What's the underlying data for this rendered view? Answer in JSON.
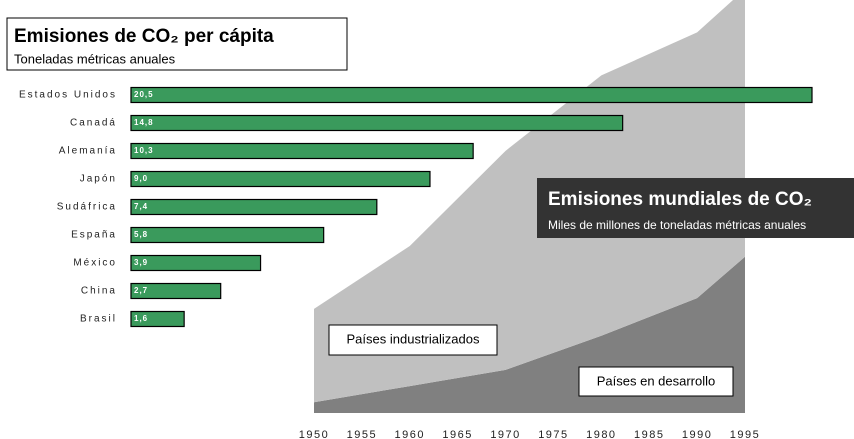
{
  "chart_data": [
    {
      "type": "area",
      "title": "Emisiones mundiales de CO₂",
      "subtitle": "Miles de millones de toneladas métricas anuales",
      "x": [
        1950,
        1960,
        1970,
        1980,
        1990,
        1995
      ],
      "xlim": [
        1950,
        1995
      ],
      "xticks": [
        1950,
        1955,
        1960,
        1965,
        1970,
        1975,
        1980,
        1985,
        1990,
        1995
      ],
      "ylim": [
        0,
        23
      ],
      "stacked": true,
      "series": [
        {
          "name": "Países en desarrollo",
          "color": "#808080",
          "values": [
            0.6,
            1.5,
            2.4,
            4.3,
            6.4,
            8.7
          ]
        },
        {
          "name": "Países industrializados",
          "color": "#c0c0c0",
          "values": [
            5.2,
            7.8,
            12.2,
            14.5,
            14.8,
            14.9
          ]
        }
      ]
    },
    {
      "type": "hbar",
      "title": "Emisiones de CO₂ per cápita",
      "subtitle": "Toneladas métricas anuales",
      "categories": [
        "Estados Unidos",
        "Canadá",
        "Alemanía",
        "Japón",
        "Sudáfrica",
        "España",
        "México",
        "China",
        "Brasil"
      ],
      "values": [
        20.5,
        14.8,
        10.3,
        9.0,
        7.4,
        5.8,
        3.9,
        2.7,
        1.6
      ],
      "value_labels": [
        "20,5",
        "14,8",
        "10,3",
        "9,0",
        "7,4",
        "5,8",
        "3,9",
        "2,7",
        "1,6"
      ],
      "color": "#3a9a5c"
    }
  ]
}
